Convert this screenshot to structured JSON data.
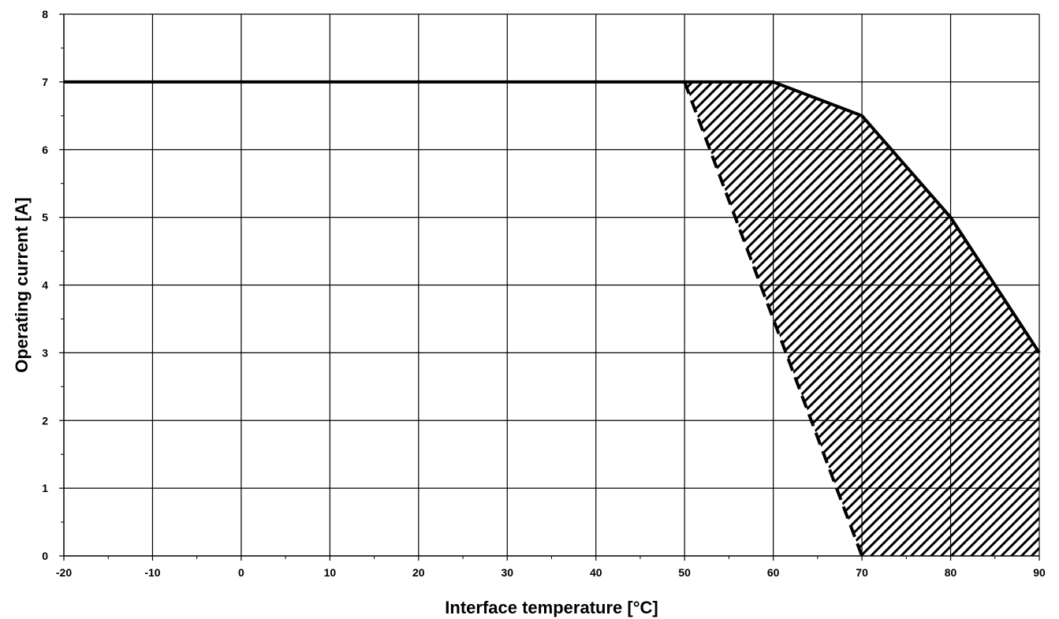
{
  "chart_data": {
    "type": "line",
    "xlabel": "Interface temperature [°C]",
    "ylabel": "Operating current [A]",
    "xlim": [
      -20,
      90
    ],
    "ylim": [
      0,
      8
    ],
    "x_ticks": [
      -20,
      -10,
      0,
      10,
      20,
      30,
      40,
      50,
      60,
      70,
      80,
      90
    ],
    "y_ticks": [
      0,
      1,
      2,
      3,
      4,
      5,
      6,
      7,
      8
    ],
    "grid": true,
    "series": [
      {
        "style": "solid",
        "x": [
          -20,
          50,
          60,
          70,
          80,
          90
        ],
        "y": [
          7,
          7,
          7,
          6.5,
          5,
          3
        ]
      },
      {
        "style": "dashed",
        "x": [
          50,
          60,
          70
        ],
        "y": [
          7,
          3.5,
          0
        ]
      }
    ],
    "hatched_region": {
      "x": [
        50,
        60,
        70,
        80,
        90,
        90,
        70,
        60
      ],
      "y": [
        7,
        7,
        6.5,
        5,
        3,
        0,
        0,
        3.5
      ]
    }
  }
}
